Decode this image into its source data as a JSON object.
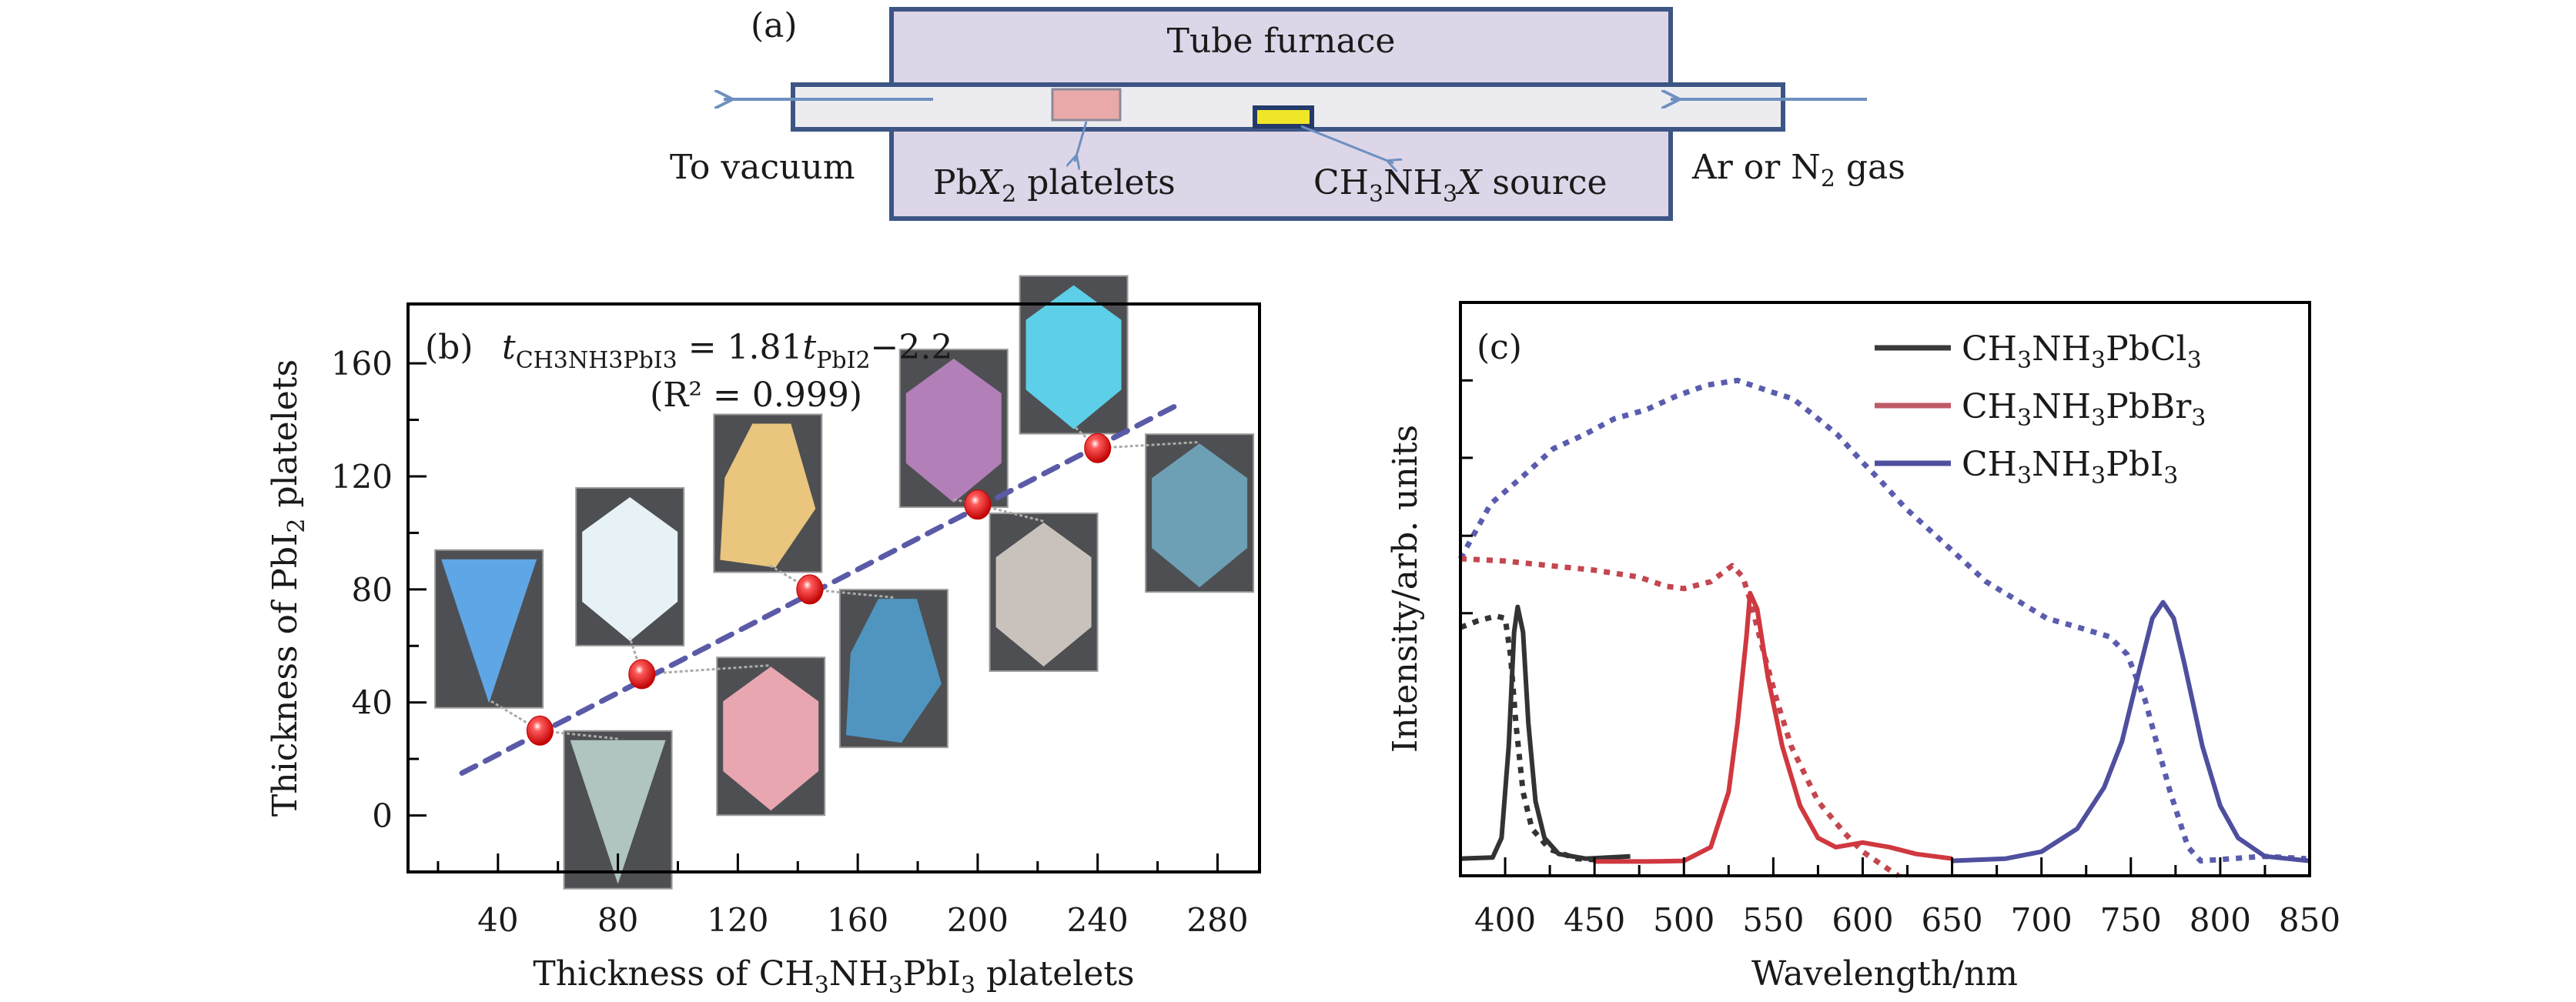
{
  "panel_a": {
    "tag": "(a)",
    "furnace_label": "Tube furnace",
    "left_label": "To vacuum",
    "right_label_pre": "Ar or N",
    "right_label_sub": "2",
    "right_label_post": " gas",
    "platelets_pre": "Pb",
    "platelets_var": "X",
    "platelets_sub": "2",
    "platelets_post": " platelets",
    "source_pre": "CH",
    "source_sub1": "3",
    "source_mid": "NH",
    "source_sub2": "3",
    "source_var": "X",
    "source_post": " source",
    "colors": {
      "furnace_fill": "#dcd6e8",
      "furnace_border": "#3d5585",
      "tube_fill": "#ececf0",
      "platelet_fill": "#e8a9a8",
      "source_fill": "#f0e628",
      "arrow": "#6e8fc0"
    }
  },
  "chart_data": [
    {
      "type": "scatter",
      "panel": "(b)",
      "title": "",
      "equation": {
        "lhs_var": "t",
        "lhs_sub": "CH3NH3PbI3",
        "rhs": "= 1.81",
        "rhs_var": "t",
        "rhs_sub": "PbI2",
        "rhs_tail": "−2.2",
        "r2": "(R² = 0.999)"
      },
      "xlabel": "Thickness of CH3NH3PbI3 platelets",
      "ylabel": "Thickness of PbI2 platelets",
      "xlim": [
        10,
        294
      ],
      "ylim": [
        -20,
        181
      ],
      "x_ticks": [
        40,
        80,
        120,
        160,
        200,
        240,
        280
      ],
      "x_minor_ticks": [
        20,
        60,
        100,
        140,
        180,
        220,
        260
      ],
      "y_ticks": [
        0,
        40,
        80,
        120,
        160
      ],
      "y_minor_ticks": [
        20,
        60,
        100,
        140
      ],
      "points": [
        {
          "x": 54,
          "y": 30
        },
        {
          "x": 88,
          "y": 50
        },
        {
          "x": 144,
          "y": 80
        },
        {
          "x": 200,
          "y": 110
        },
        {
          "x": 240,
          "y": 130
        }
      ],
      "fit_line": {
        "x": [
          28,
          268
        ],
        "y": [
          15,
          146
        ],
        "style": "dashed",
        "color": "#5a5aa8"
      },
      "point_color": "#e01818",
      "insets": [
        {
          "name": "blue-triangle-platelet",
          "color": "#5fa6e6",
          "shape": "triangle-down",
          "cx": 37,
          "cy": 66,
          "link": 0
        },
        {
          "name": "grey-triangle-platelet",
          "color": "#b0c4c0",
          "shape": "triangle-down",
          "cx": 80,
          "cy": 2,
          "link": 0
        },
        {
          "name": "white-hexagon-platelet",
          "color": "#e6f2f5",
          "shape": "hexagon",
          "cx": 84,
          "cy": 88,
          "link": 1
        },
        {
          "name": "pink-hexagon-platelet",
          "color": "#e8a6b0",
          "shape": "hexagon",
          "cx": 131,
          "cy": 28,
          "link": 1
        },
        {
          "name": "orange-platelet",
          "color": "#e9c57e",
          "shape": "pentagon",
          "cx": 130,
          "cy": 114,
          "link": 2
        },
        {
          "name": "blue-pentagon-platelet",
          "color": "#4f95c0",
          "shape": "pentagon",
          "cx": 172,
          "cy": 52,
          "link": 2
        },
        {
          "name": "purple-platelet",
          "color": "#b27fb8",
          "shape": "hexagon",
          "cx": 192,
          "cy": 137,
          "link": 3
        },
        {
          "name": "beige-platelet",
          "color": "#c9c2bc",
          "shape": "hexagon",
          "cx": 222,
          "cy": 79,
          "link": 3
        },
        {
          "name": "cyan-hexagon-platelet",
          "color": "#5dcfe8",
          "shape": "hexagon",
          "cx": 232,
          "cy": 163,
          "link": 4
        },
        {
          "name": "slate-hexagon-platelet",
          "color": "#6d9fb5",
          "shape": "hexagon",
          "cx": 274,
          "cy": 107,
          "link": 4
        }
      ]
    },
    {
      "type": "line",
      "panel": "(c)",
      "title": "",
      "xlabel": "Wavelength/nm",
      "ylabel": "Intensity/arb. units",
      "xlim": [
        375,
        850
      ],
      "ylim": [
        0,
        1
      ],
      "x_ticks": [
        400,
        450,
        500,
        550,
        600,
        650,
        700,
        750,
        800,
        850
      ],
      "x_minor_ticks": [
        425,
        475,
        525,
        575,
        625,
        675,
        725,
        775,
        825
      ],
      "y_ticks": [
        0.458,
        0.593,
        0.729,
        0.864
      ],
      "y_tick_labels": [],
      "legend": {
        "placement": "top-right",
        "entries": [
          {
            "label_pre": "CH",
            "sub1": "3",
            "mid": "NH",
            "sub2": "3",
            "tail": "PbCl",
            "sub3": "3",
            "color": "#3a3a3a"
          },
          {
            "label_pre": "CH",
            "sub1": "3",
            "mid": "NH",
            "sub2": "3",
            "tail": "PbBr",
            "sub3": "3",
            "color": "#c05a66"
          },
          {
            "label_pre": "CH",
            "sub1": "3",
            "mid": "NH",
            "sub2": "3",
            "tail": "PbI",
            "sub3": "3",
            "color": "#4e4f9e"
          }
        ]
      },
      "series": [
        {
          "name": "CH3NH3PbI3 absorption",
          "style": "dotted",
          "color": "#5a5cae",
          "x": [
            375,
            392,
            410,
            427,
            444,
            461,
            479,
            496,
            513,
            530,
            548,
            561,
            572,
            586,
            600,
            610,
            624,
            641,
            655,
            669,
            686,
            703,
            721,
            738,
            748,
            758,
            765,
            772,
            782,
            789,
            807,
            824,
            848
          ],
          "y": [
            0.553,
            0.649,
            0.697,
            0.745,
            0.769,
            0.797,
            0.813,
            0.837,
            0.856,
            0.864,
            0.845,
            0.832,
            0.805,
            0.769,
            0.721,
            0.689,
            0.641,
            0.593,
            0.553,
            0.513,
            0.481,
            0.449,
            0.433,
            0.417,
            0.386,
            0.306,
            0.226,
            0.146,
            0.05,
            0.026,
            0.03,
            0.034,
            0.03
          ]
        },
        {
          "name": "CH3NH3PbBr3 absorption",
          "style": "dotted",
          "color": "#c4464e",
          "x": [
            375,
            400,
            425,
            450,
            475,
            490,
            500,
            515,
            527,
            533,
            537,
            545,
            552,
            560,
            575,
            590,
            600,
            615,
            620
          ],
          "y": [
            0.553,
            0.549,
            0.541,
            0.533,
            0.521,
            0.505,
            0.501,
            0.513,
            0.541,
            0.521,
            0.481,
            0.385,
            0.306,
            0.226,
            0.13,
            0.074,
            0.042,
            0.01,
            0.0
          ]
        },
        {
          "name": "CH3NH3PbCl3 absorption",
          "style": "dotted",
          "color": "#333333",
          "x": [
            375,
            385,
            395,
            400,
            403,
            406,
            410,
            415,
            425,
            440,
            460
          ],
          "y": [
            0.433,
            0.445,
            0.453,
            0.449,
            0.385,
            0.266,
            0.146,
            0.082,
            0.046,
            0.03,
            0.026
          ]
        },
        {
          "name": "CH3NH3PbCl3",
          "style": "solid",
          "color": "#333333",
          "x": [
            375,
            393,
            398,
            402,
            405,
            407,
            410,
            413,
            417,
            422,
            430,
            445,
            470
          ],
          "y": [
            0.03,
            0.032,
            0.066,
            0.226,
            0.425,
            0.469,
            0.425,
            0.266,
            0.13,
            0.066,
            0.038,
            0.03,
            0.034
          ]
        },
        {
          "name": "CH3NH3PbBr3",
          "style": "solid",
          "color": "#d0383f",
          "x": [
            450,
            480,
            500,
            515,
            525,
            530,
            535,
            537,
            541,
            547,
            555,
            565,
            575,
            585,
            600,
            615,
            630,
            650
          ],
          "y": [
            0.025,
            0.025,
            0.026,
            0.05,
            0.146,
            0.266,
            0.417,
            0.493,
            0.465,
            0.346,
            0.226,
            0.122,
            0.066,
            0.05,
            0.058,
            0.05,
            0.038,
            0.03
          ]
        },
        {
          "name": "CH3NH3PbI3",
          "style": "solid",
          "color": "#4e4f9e",
          "x": [
            650,
            680,
            700,
            720,
            735,
            745,
            755,
            762,
            768,
            774,
            780,
            790,
            800,
            810,
            825,
            850
          ],
          "y": [
            0.026,
            0.03,
            0.042,
            0.082,
            0.154,
            0.234,
            0.362,
            0.449,
            0.477,
            0.449,
            0.369,
            0.226,
            0.122,
            0.066,
            0.034,
            0.026
          ]
        }
      ]
    }
  ]
}
